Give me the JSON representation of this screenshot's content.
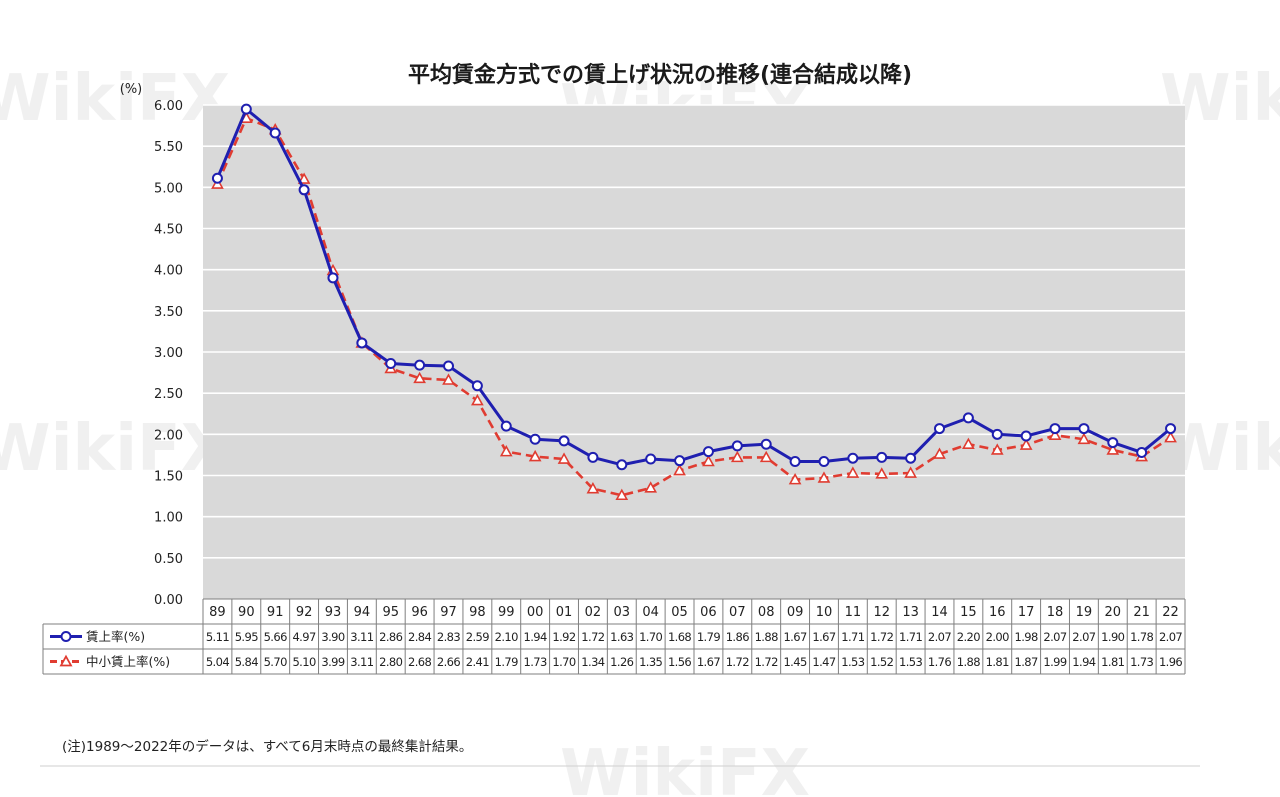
{
  "chart_data": {
    "type": "line",
    "title": "平均賃金方式での賃上げ状況の推移(連合結成以降)",
    "ylabel": "(%)",
    "ylim": [
      0,
      6
    ],
    "yticks": [
      "0.00",
      "0.50",
      "1.00",
      "1.50",
      "2.00",
      "2.50",
      "3.00",
      "3.50",
      "4.00",
      "4.50",
      "5.00",
      "5.50",
      "6.00"
    ],
    "grid": true,
    "categories": [
      "89",
      "90",
      "91",
      "92",
      "93",
      "94",
      "95",
      "96",
      "97",
      "98",
      "99",
      "00",
      "01",
      "02",
      "03",
      "04",
      "05",
      "06",
      "07",
      "08",
      "09",
      "10",
      "11",
      "12",
      "13",
      "14",
      "15",
      "16",
      "17",
      "18",
      "19",
      "20",
      "21",
      "22"
    ],
    "series": [
      {
        "name": "賃上率(%)",
        "color": "#1f1fb0",
        "style": "solid",
        "marker": "circle",
        "values": [
          5.11,
          5.95,
          5.66,
          4.97,
          3.9,
          3.11,
          2.86,
          2.84,
          2.83,
          2.59,
          2.1,
          1.94,
          1.92,
          1.72,
          1.63,
          1.7,
          1.68,
          1.79,
          1.86,
          1.88,
          1.67,
          1.67,
          1.71,
          1.72,
          1.71,
          2.07,
          2.2,
          2.0,
          1.98,
          2.07,
          2.07,
          1.9,
          1.78,
          2.07
        ],
        "labels": [
          "5.11",
          "5.95",
          "5.66",
          "4.97",
          "3.90",
          "3.11",
          "2.86",
          "2.84",
          "2.83",
          "2.59",
          "2.10",
          "1.94",
          "1.92",
          "1.72",
          "1.63",
          "1.70",
          "1.68",
          "1.79",
          "1.86",
          "1.88",
          "1.67",
          "1.67",
          "1.71",
          "1.72",
          "1.71",
          "2.07",
          "2.20",
          "2.00",
          "1.98",
          "2.07",
          "2.07",
          "1.90",
          "1.78",
          "2.07"
        ]
      },
      {
        "name": "中小賃上率(%)",
        "color": "#e03c31",
        "style": "dashed",
        "marker": "triangle",
        "values": [
          5.04,
          5.84,
          5.7,
          5.1,
          3.99,
          3.11,
          2.8,
          2.68,
          2.66,
          2.41,
          1.79,
          1.73,
          1.7,
          1.34,
          1.26,
          1.35,
          1.56,
          1.67,
          1.72,
          1.72,
          1.45,
          1.47,
          1.53,
          1.52,
          1.53,
          1.76,
          1.88,
          1.81,
          1.87,
          1.99,
          1.94,
          1.81,
          1.73,
          1.96
        ],
        "labels": [
          "5.04",
          "5.84",
          "5.70",
          "5.10",
          "3.99",
          "3.11",
          "2.80",
          "2.68",
          "2.66",
          "2.41",
          "1.79",
          "1.73",
          "1.70",
          "1.34",
          "1.26",
          "1.35",
          "1.56",
          "1.67",
          "1.72",
          "1.72",
          "1.45",
          "1.47",
          "1.53",
          "1.52",
          "1.53",
          "1.76",
          "1.88",
          "1.81",
          "1.87",
          "1.99",
          "1.94",
          "1.81",
          "1.73",
          "1.96"
        ]
      }
    ]
  },
  "note": "(注)1989～2022年のデータは、すべて6月末時点の最終集計結果。",
  "watermark": "WikiFX"
}
